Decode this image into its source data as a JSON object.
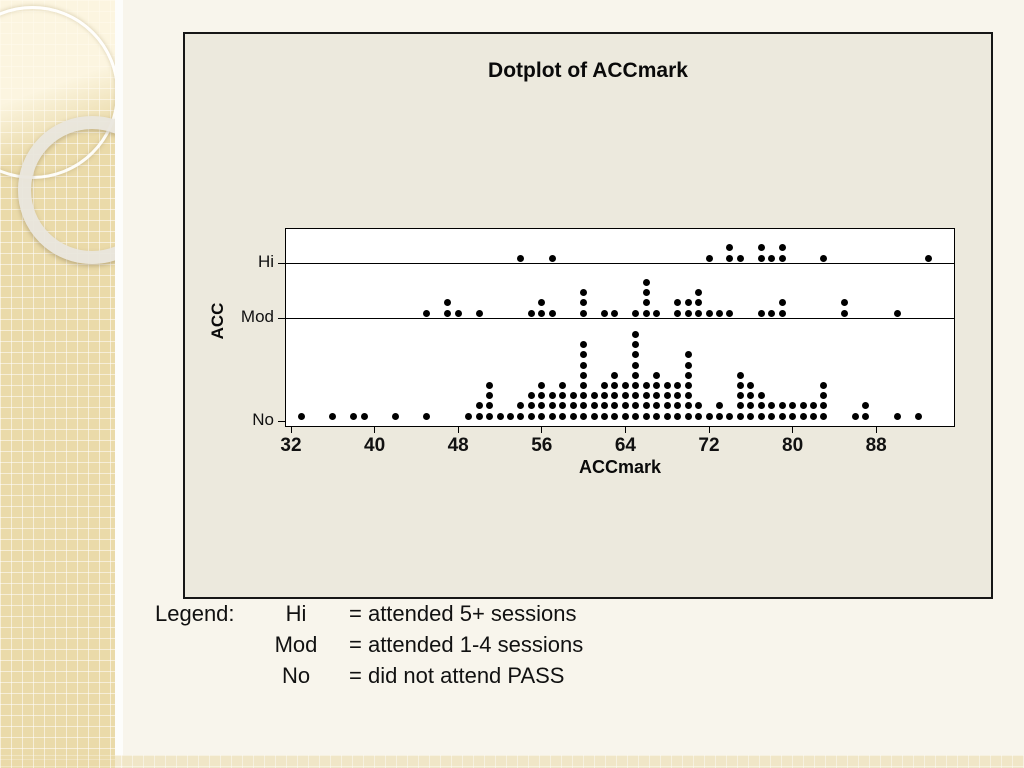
{
  "slide": {
    "title": "Dotplot of ACCmark",
    "x_axis_label": "ACCmark",
    "y_axis_label": "ACC",
    "y_categories": [
      "Hi",
      "Mod",
      "No"
    ]
  },
  "legend": {
    "heading": "Legend:",
    "entries": [
      {
        "term": "Hi",
        "definition": "= attended 5+ sessions"
      },
      {
        "term": "Mod",
        "definition": "= attended 1-4 sessions"
      },
      {
        "term": "No",
        "definition": "= did not attend PASS"
      }
    ]
  },
  "colors": {
    "slide_bg": "#f8f5ec",
    "figure_bg": "#ece9dd",
    "plot_bg": "#ffffff",
    "dot": "#000000",
    "strip_tan": "#eadaa9"
  },
  "chart_data": {
    "type": "dotplot",
    "title": "Dotplot of ACCmark",
    "xlabel": "ACCmark",
    "ylabel": "ACC",
    "x_ticks": [
      32,
      40,
      48,
      56,
      64,
      72,
      80,
      88
    ],
    "xlim": [
      31.5,
      95.5
    ],
    "grid": false,
    "note": "Each stack entry is [ACCmark value, number of stacked dots]",
    "rows": [
      {
        "category": "Hi",
        "stacks": [
          [
            54,
            1
          ],
          [
            57,
            1
          ],
          [
            72,
            1
          ],
          [
            74,
            2
          ],
          [
            75,
            1
          ],
          [
            77,
            2
          ],
          [
            78,
            1
          ],
          [
            79,
            2
          ],
          [
            83,
            1
          ],
          [
            93,
            1
          ]
        ]
      },
      {
        "category": "Mod",
        "stacks": [
          [
            45,
            1
          ],
          [
            47,
            2
          ],
          [
            48,
            1
          ],
          [
            50,
            1
          ],
          [
            55,
            1
          ],
          [
            56,
            2
          ],
          [
            57,
            1
          ],
          [
            60,
            3
          ],
          [
            62,
            1
          ],
          [
            63,
            1
          ],
          [
            65,
            1
          ],
          [
            66,
            4
          ],
          [
            67,
            1
          ],
          [
            69,
            2
          ],
          [
            70,
            2
          ],
          [
            71,
            3
          ],
          [
            72,
            1
          ],
          [
            73,
            1
          ],
          [
            74,
            1
          ],
          [
            77,
            1
          ],
          [
            78,
            1
          ],
          [
            79,
            2
          ],
          [
            85,
            2
          ],
          [
            90,
            1
          ]
        ]
      },
      {
        "category": "No",
        "stacks": [
          [
            33,
            1
          ],
          [
            36,
            1
          ],
          [
            38,
            1
          ],
          [
            39,
            1
          ],
          [
            42,
            1
          ],
          [
            45,
            1
          ],
          [
            49,
            1
          ],
          [
            50,
            2
          ],
          [
            51,
            4
          ],
          [
            52,
            1
          ],
          [
            53,
            1
          ],
          [
            54,
            2
          ],
          [
            55,
            3
          ],
          [
            56,
            4
          ],
          [
            57,
            3
          ],
          [
            58,
            4
          ],
          [
            59,
            3
          ],
          [
            60,
            8
          ],
          [
            61,
            3
          ],
          [
            62,
            4
          ],
          [
            63,
            5
          ],
          [
            64,
            4
          ],
          [
            65,
            9
          ],
          [
            66,
            4
          ],
          [
            67,
            5
          ],
          [
            68,
            4
          ],
          [
            69,
            4
          ],
          [
            70,
            7
          ],
          [
            71,
            2
          ],
          [
            72,
            1
          ],
          [
            73,
            2
          ],
          [
            74,
            1
          ],
          [
            75,
            5
          ],
          [
            76,
            4
          ],
          [
            77,
            3
          ],
          [
            78,
            2
          ],
          [
            79,
            2
          ],
          [
            80,
            2
          ],
          [
            81,
            2
          ],
          [
            82,
            2
          ],
          [
            83,
            4
          ],
          [
            86,
            1
          ],
          [
            87,
            2
          ],
          [
            90,
            1
          ],
          [
            92,
            1
          ]
        ]
      }
    ]
  }
}
